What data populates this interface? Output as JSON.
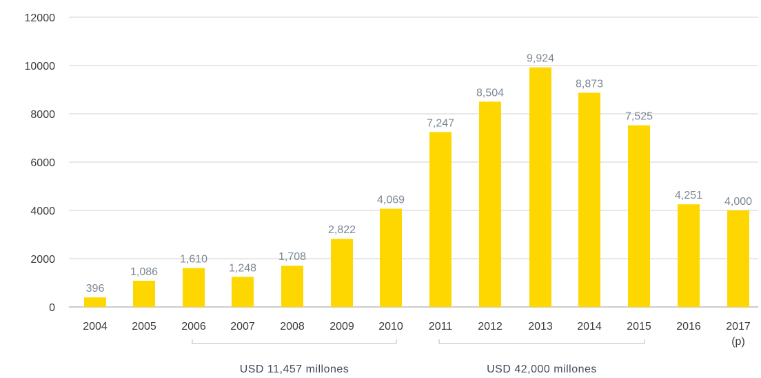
{
  "chart_data": {
    "type": "bar",
    "categories": [
      "2004",
      "2005",
      "2006",
      "2007",
      "2008",
      "2009",
      "2010",
      "2011",
      "2012",
      "2013",
      "2014",
      "2015",
      "2016",
      "2017"
    ],
    "category_sublabels": [
      "",
      "",
      "",
      "",
      "",
      "",
      "",
      "",
      "",
      "",
      "",
      "",
      "",
      "(p)"
    ],
    "values": [
      396,
      1086,
      1610,
      1248,
      1708,
      2822,
      4069,
      7247,
      8504,
      9924,
      8873,
      7525,
      4251,
      4000
    ],
    "value_labels": [
      "396",
      "1,086",
      "1,610",
      "1,248",
      "1,708",
      "2,822",
      "4,069",
      "7,247",
      "8,504",
      "9,924",
      "8,873",
      "7,525",
      "4,251",
      "4,000"
    ],
    "yticks": [
      "0",
      "2000",
      "4000",
      "6000",
      "8000",
      "10000",
      "12000"
    ],
    "ylim": [
      0,
      12000
    ],
    "grid": true,
    "bar_color": "#FFD700",
    "grid_color": "#d0d0d0",
    "groups": [
      {
        "label": "USD 11,457 millones",
        "from": "2006",
        "to": "2010"
      },
      {
        "label": "USD 42,000 millones",
        "from": "2011",
        "to": "2015"
      }
    ]
  }
}
